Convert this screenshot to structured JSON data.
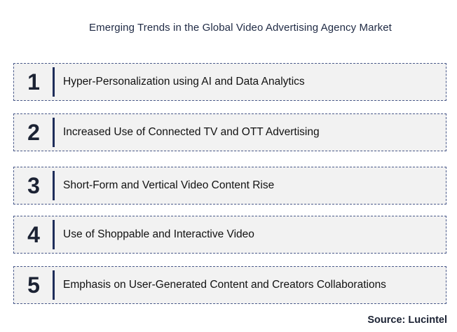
{
  "title": "Emerging Trends in the Global Video Advertising Agency Market",
  "trends": [
    {
      "number": "1",
      "label": "Hyper-Personalization using AI and Data Analytics"
    },
    {
      "number": "2",
      "label": "Increased Use of Connected TV and OTT Advertising"
    },
    {
      "number": "3",
      "label": "Short-Form and Vertical Video Content Rise"
    },
    {
      "number": "4",
      "label": "Use of Shoppable and Interactive Video"
    },
    {
      "number": "5",
      "label": "Emphasis on User-Generated Content and Creators Collaborations"
    }
  ],
  "source": "Source: Lucintel",
  "colors": {
    "box_fill": "#f2f2f2",
    "box_border": "#4a5a8a",
    "divider": "#1f2d5a",
    "title_text": "#1f2a44"
  }
}
